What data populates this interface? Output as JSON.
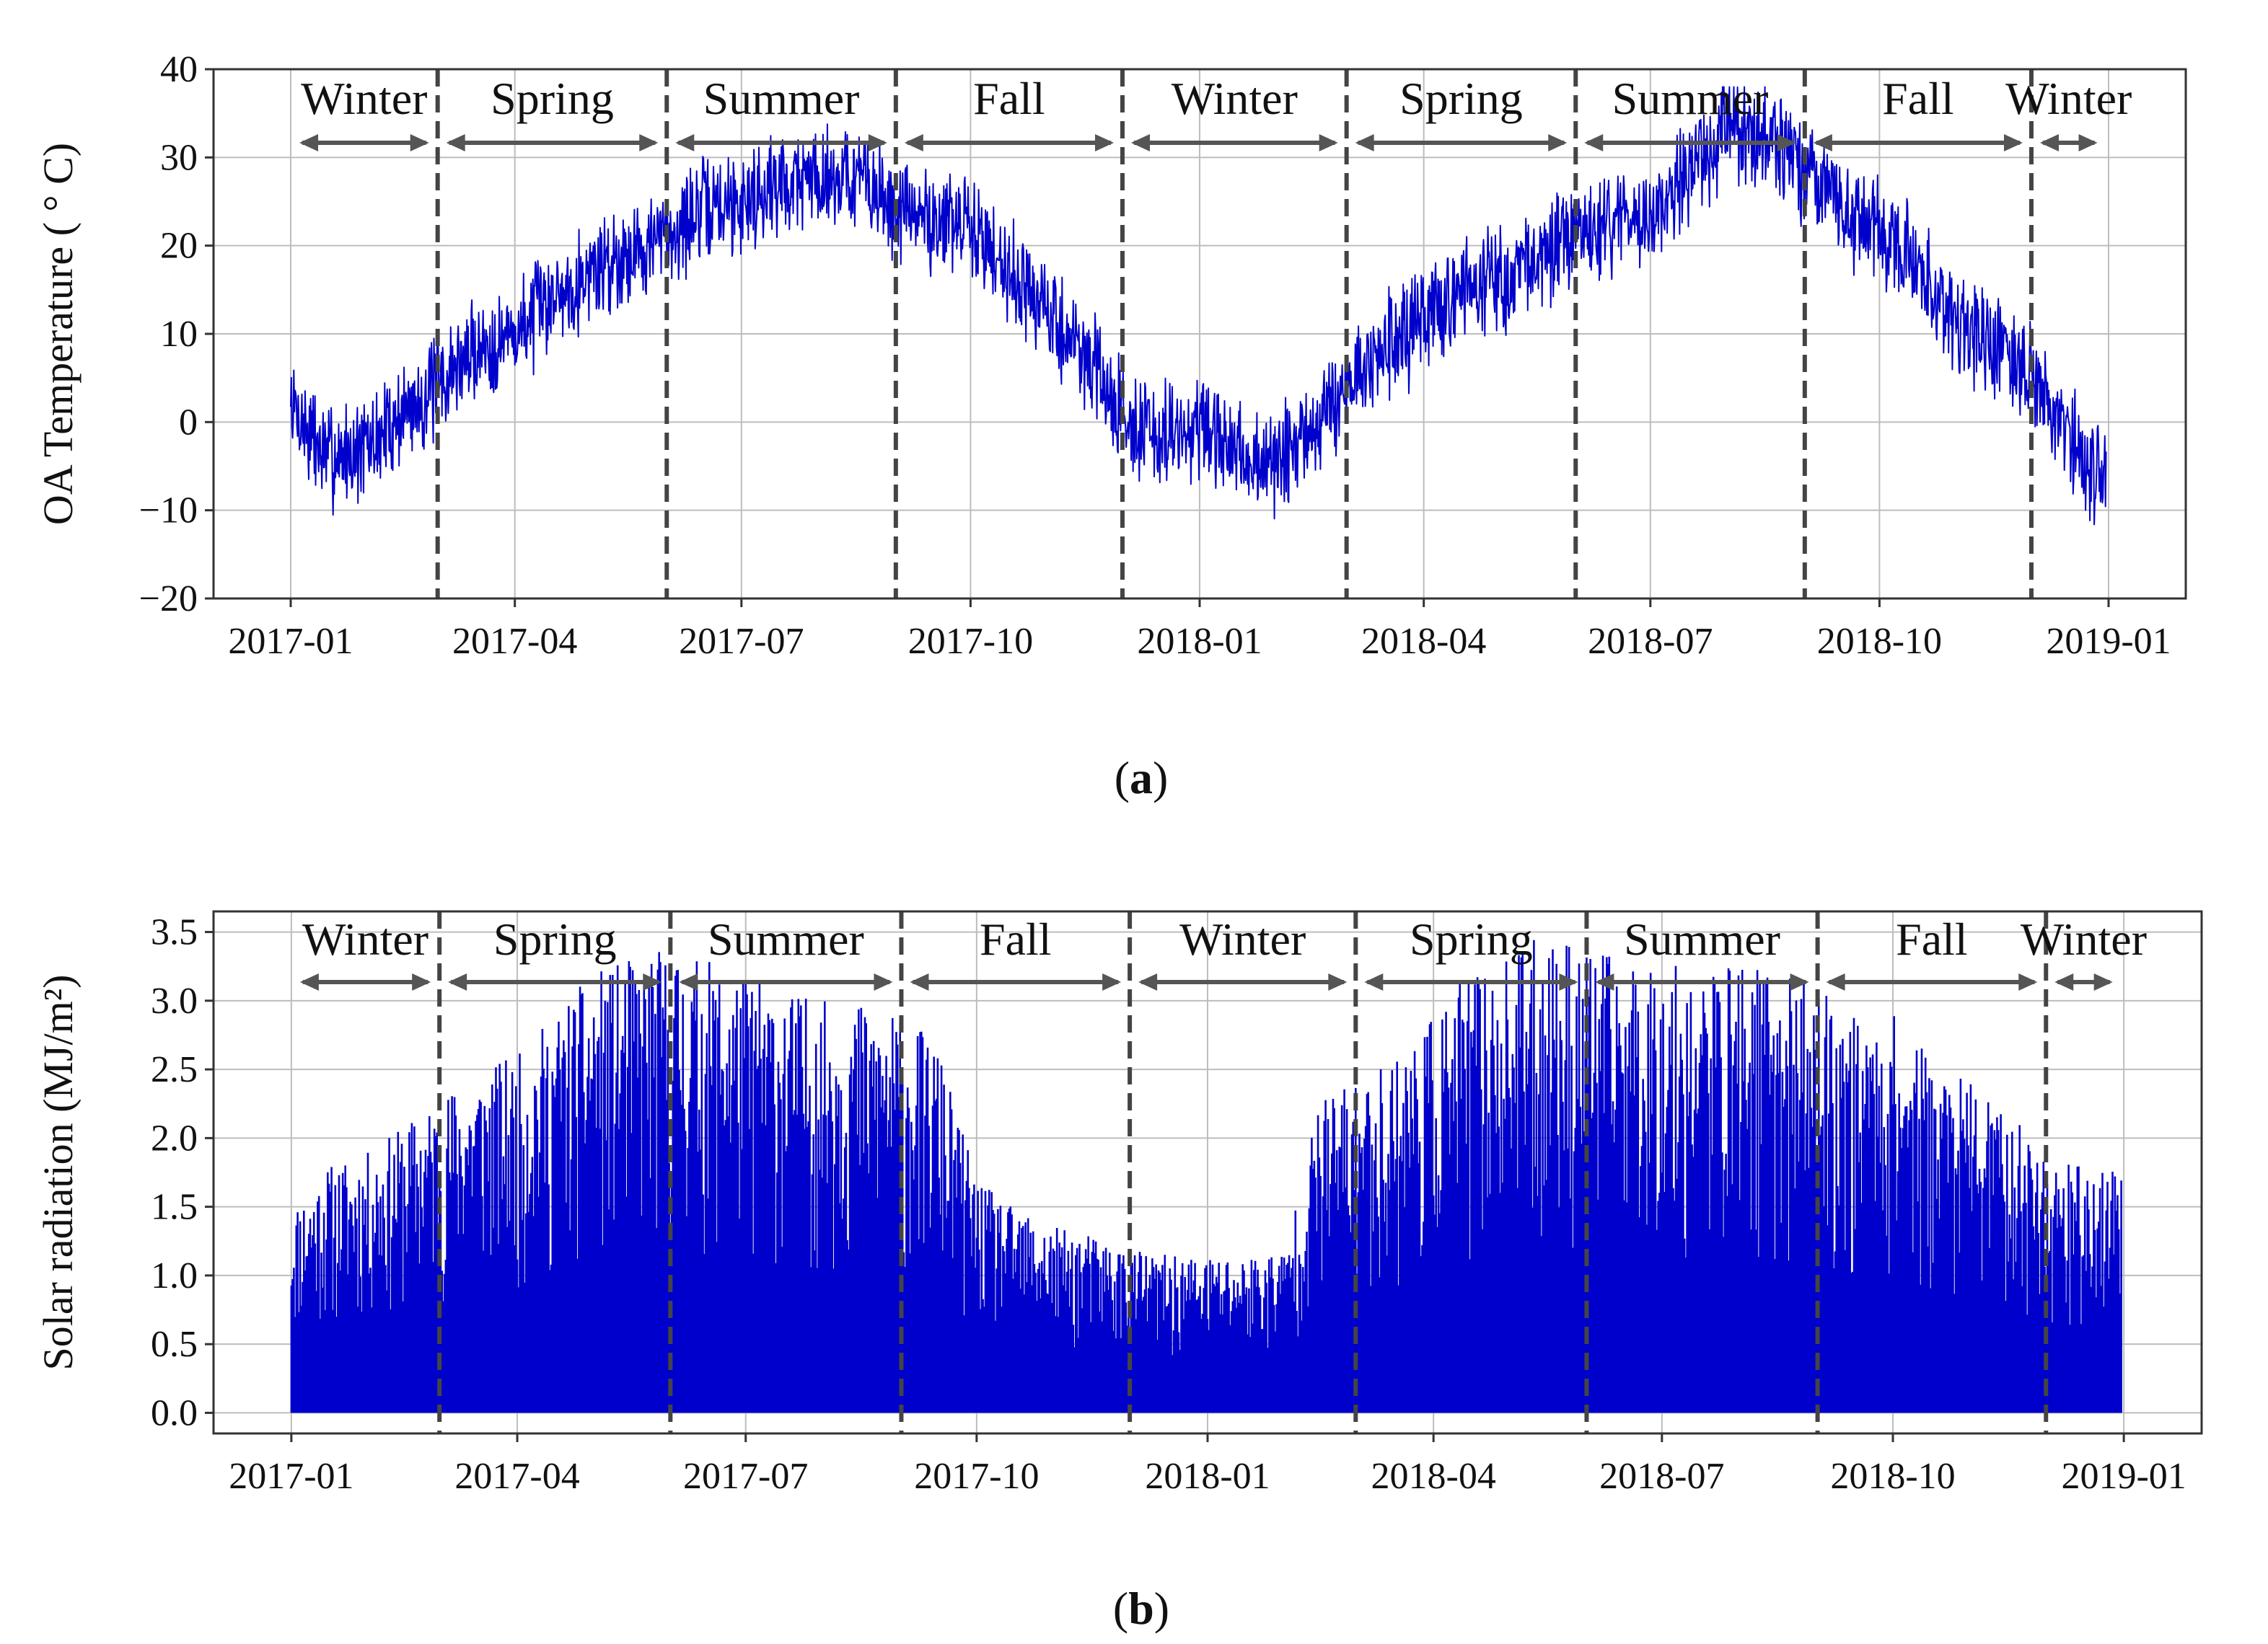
{
  "chart_data": [
    {
      "type": "line",
      "panel": "a",
      "ylabel": "OA Temperature ( ° C)",
      "ylim": [
        -20,
        40
      ],
      "yticks": [
        "−20",
        "−10",
        "0",
        "10",
        "20",
        "30",
        "40"
      ],
      "xlim": [
        "2016-12-01",
        "2019-02-01"
      ],
      "xticks": [
        "2017-01",
        "2017-04",
        "2017-07",
        "2017-10",
        "2018-01",
        "2018-04",
        "2018-07",
        "2018-10",
        "2019-01"
      ],
      "grid": true,
      "season_boundaries": [
        "2017-03-01",
        "2017-06-01",
        "2017-09-01",
        "2017-12-01",
        "2018-03-01",
        "2018-06-01",
        "2018-09-01",
        "2018-12-01"
      ],
      "season_labels": [
        "Winter",
        "Spring",
        "Summer",
        "Fall",
        "Winter",
        "Spring",
        "Summer",
        "Fall",
        "Winter"
      ],
      "series": [
        {
          "color": "#0000cc",
          "x": [
            "2017-01-01",
            "2017-01-15",
            "2017-02-01",
            "2017-02-15",
            "2017-03-01",
            "2017-03-15",
            "2017-04-01",
            "2017-04-15",
            "2017-05-01",
            "2017-05-15",
            "2017-06-01",
            "2017-06-15",
            "2017-07-01",
            "2017-07-15",
            "2017-08-01",
            "2017-08-15",
            "2017-09-01",
            "2017-09-15",
            "2017-10-01",
            "2017-10-15",
            "2017-11-01",
            "2017-11-15",
            "2017-12-01",
            "2017-12-15",
            "2018-01-01",
            "2018-01-15",
            "2018-02-01",
            "2018-02-15",
            "2018-03-01",
            "2018-03-15",
            "2018-04-01",
            "2018-04-15",
            "2018-05-01",
            "2018-05-15",
            "2018-06-01",
            "2018-06-15",
            "2018-07-01",
            "2018-07-15",
            "2018-08-01",
            "2018-08-15",
            "2018-09-01",
            "2018-09-15",
            "2018-10-01",
            "2018-10-15",
            "2018-11-01",
            "2018-11-15",
            "2018-12-01",
            "2018-12-15",
            "2018-12-31"
          ],
          "y": [
            2,
            -4,
            -3,
            1,
            4,
            8,
            10,
            14,
            17,
            19,
            21,
            24,
            25,
            27,
            28,
            28,
            24,
            23,
            22,
            18,
            12,
            8,
            1,
            -2,
            -1,
            -4,
            -5,
            -1,
            4,
            8,
            11,
            15,
            16,
            18,
            21,
            22,
            24,
            27,
            33,
            33,
            28,
            24,
            22,
            18,
            12,
            8,
            6,
            -2,
            -7
          ]
        }
      ]
    },
    {
      "type": "bar",
      "panel": "b",
      "ylabel": "Solar radiation (MJ/m²)",
      "ylim": [
        -0.15,
        3.65
      ],
      "yticks": [
        "0.0",
        "0.5",
        "1.0",
        "1.5",
        "2.0",
        "2.5",
        "3.0",
        "3.5"
      ],
      "xlim": [
        "2016-12-01",
        "2019-02-01"
      ],
      "xticks": [
        "2017-01",
        "2017-04",
        "2017-07",
        "2017-10",
        "2018-01",
        "2018-04",
        "2018-07",
        "2018-10",
        "2019-01"
      ],
      "grid": true,
      "season_boundaries": [
        "2017-03-01",
        "2017-06-01",
        "2017-09-01",
        "2017-12-01",
        "2018-03-01",
        "2018-06-01",
        "2018-09-01",
        "2018-12-01"
      ],
      "season_labels": [
        "Winter",
        "Spring",
        "Summer",
        "Fall",
        "Winter",
        "Spring",
        "Summer",
        "Fall",
        "Winter"
      ],
      "series": [
        {
          "color": "#0000cc",
          "x": [
            "2017-01-01",
            "2017-01-15",
            "2017-02-01",
            "2017-02-15",
            "2017-03-01",
            "2017-03-15",
            "2017-04-01",
            "2017-04-15",
            "2017-05-01",
            "2017-05-15",
            "2017-06-01",
            "2017-06-15",
            "2017-07-01",
            "2017-07-15",
            "2017-08-01",
            "2017-08-15",
            "2017-09-01",
            "2017-09-15",
            "2017-10-01",
            "2017-10-15",
            "2017-11-01",
            "2017-11-15",
            "2017-12-01",
            "2017-12-15",
            "2018-01-01",
            "2018-01-15",
            "2018-02-01",
            "2018-02-15",
            "2018-03-01",
            "2018-03-15",
            "2018-04-01",
            "2018-04-15",
            "2018-05-01",
            "2018-05-15",
            "2018-06-01",
            "2018-06-15",
            "2018-07-01",
            "2018-07-15",
            "2018-08-01",
            "2018-08-15",
            "2018-09-01",
            "2018-09-15",
            "2018-10-01",
            "2018-10-15",
            "2018-11-01",
            "2018-11-15",
            "2018-12-01",
            "2018-12-15",
            "2018-12-31"
          ],
          "max": [
            1.5,
            1.8,
            1.9,
            2.1,
            2.3,
            2.5,
            2.6,
            2.9,
            3.2,
            3.3,
            3.4,
            3.3,
            3.2,
            3.1,
            3.0,
            3.0,
            2.9,
            2.7,
            1.7,
            1.5,
            1.35,
            1.3,
            1.2,
            1.15,
            1.15,
            1.15,
            1.2,
            2.3,
            2.4,
            2.6,
            2.9,
            3.2,
            3.3,
            3.5,
            3.4,
            3.3,
            3.3,
            3.2,
            3.3,
            3.2,
            3.1,
            2.9,
            2.9,
            2.6,
            2.4,
            2.2,
            1.9,
            1.8,
            1.8
          ]
        }
      ]
    }
  ],
  "captions": {
    "a_open": "(",
    "a_letter": "a",
    "a_close": ")",
    "b_open": "(",
    "b_letter": "b",
    "b_close": ")"
  }
}
